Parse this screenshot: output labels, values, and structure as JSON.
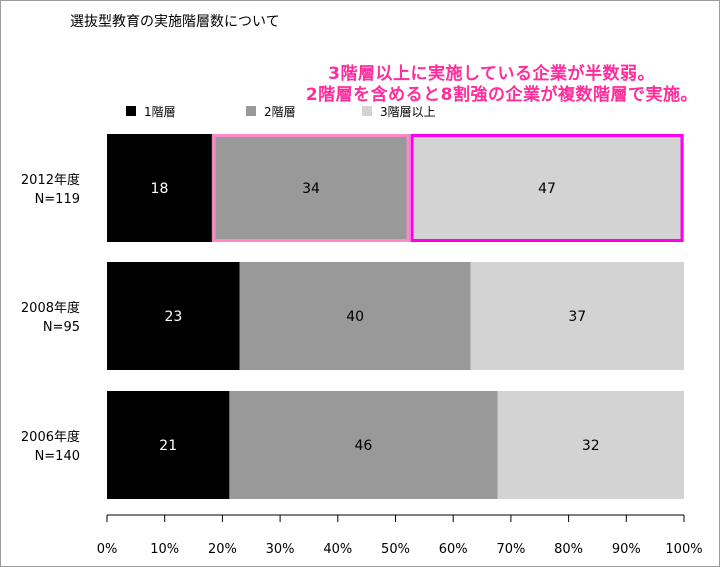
{
  "page_title": "選抜型教育の実施階層数について",
  "annotations": [
    "3階層以上に実施している企業が半数弱。",
    "2階層を含めると8割強の企業が複数階層で実施。"
  ],
  "chart_data": {
    "type": "bar",
    "orientation": "horizontal-stacked-100",
    "title": "選抜型教育の実施階層数について",
    "categories": [
      "2012年度\nN=119",
      "2008年度\nN=95",
      "2006年度\nN=140"
    ],
    "series": [
      {
        "name": "1階層",
        "color": "#000000",
        "label_color": "#ffffff",
        "values": [
          18,
          23,
          21
        ]
      },
      {
        "name": "2階層",
        "color": "#999999",
        "label_color": "#000000",
        "values": [
          34,
          40,
          46
        ]
      },
      {
        "name": "3階層以上",
        "color": "#d3d3d3",
        "label_color": "#000000",
        "values": [
          47,
          37,
          32
        ]
      }
    ],
    "xlim": [
      0,
      100
    ],
    "x_ticks": [
      "0%",
      "10%",
      "20%",
      "30%",
      "40%",
      "50%",
      "60%",
      "70%",
      "80%",
      "90%",
      "100%"
    ],
    "legend": {
      "position": "top"
    },
    "highlight": {
      "category_index": 0,
      "series_outline_colors": [
        null,
        "#ff88c8",
        "#ff00ee"
      ]
    },
    "grid": false
  }
}
